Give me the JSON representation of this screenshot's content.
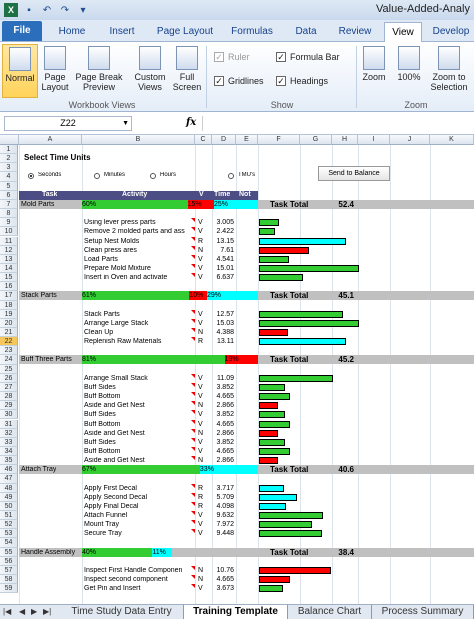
{
  "window": {
    "title": "Value-Added-Analy"
  },
  "quick_access": {
    "save_icon": "save-icon",
    "undo_icon": "undo-icon",
    "redo_icon": "redo-icon"
  },
  "tabs": [
    "File",
    "Home",
    "Insert",
    "Page Layout",
    "Formulas",
    "Data",
    "Review",
    "View",
    "Develop"
  ],
  "ribbon": {
    "workbook_views": {
      "label": "Workbook Views",
      "buttons": [
        "Normal",
        "Page Layout",
        "Page Break Preview",
        "Custom Views",
        "Full Screen"
      ]
    },
    "show": {
      "label": "Show",
      "ruler": "Ruler",
      "gridlines": "Gridlines",
      "formula_bar": "Formula Bar",
      "headings": "Headings",
      "check_mark": "✓"
    },
    "zoom": {
      "label": "Zoom",
      "buttons": [
        "Zoom",
        "100%",
        "Zoom to Selection"
      ]
    }
  },
  "formula_bar": {
    "name_box": "Z22",
    "fx": "fx",
    "dropdown": "▼"
  },
  "columns": [
    "A",
    "B",
    "C",
    "D",
    "E",
    "F",
    "G",
    "H",
    "I",
    "J",
    "K"
  ],
  "sheet": {
    "select_title": "Select Time Units",
    "units": [
      "Seconds",
      "Minutes",
      "Hours",
      "TMU's"
    ],
    "send_button": "Send to Balance",
    "headers": {
      "task": "Task",
      "activity": "Activity",
      "v": "V",
      "time": "Time",
      "not": "Not"
    },
    "task_total_label": "Task Total",
    "sections": [
      {
        "row": 7,
        "name": "Mold Parts",
        "total": "52.4",
        "green_pct": "60%",
        "red_pct": "15%",
        "cyan_pct": "25%",
        "items": [
          {
            "row": 9,
            "activity": "Using lever press parts",
            "code": "V",
            "time": "3.005",
            "color": "green",
            "len": 0.2
          },
          {
            "row": 10,
            "activity": "Remove 2 molded parts and ass",
            "code": "V",
            "time": "2.422",
            "color": "green",
            "len": 0.16
          },
          {
            "row": 11,
            "activity": "Setup Nest Molds",
            "code": "R",
            "time": "13.15",
            "color": "cyan",
            "len": 0.87
          },
          {
            "row": 12,
            "activity": "Clean press ares",
            "code": "N",
            "time": "7.61",
            "color": "red",
            "len": 0.5
          },
          {
            "row": 13,
            "activity": "Load Parts",
            "code": "V",
            "time": "4.541",
            "color": "green",
            "len": 0.3
          },
          {
            "row": 14,
            "activity": "Prepare Mold Mixture",
            "code": "V",
            "time": "15.01",
            "color": "green",
            "len": 1.0
          },
          {
            "row": 15,
            "activity": "Insert in Oven and activate",
            "code": "V",
            "time": "6.637",
            "color": "green",
            "len": 0.44
          }
        ]
      },
      {
        "row": 17,
        "name": "Stack Parts",
        "total": "45.1",
        "green_pct": "61%",
        "red_pct": "10%",
        "cyan_pct": "29%",
        "items": [
          {
            "row": 19,
            "activity": "Stack Parts",
            "code": "V",
            "time": "12.57",
            "color": "green",
            "len": 0.84
          },
          {
            "row": 20,
            "activity": "Arrange Large Stack",
            "code": "V",
            "time": "15.03",
            "color": "green",
            "len": 1.0
          },
          {
            "row": 21,
            "activity": "Clean Up",
            "code": "N",
            "time": "4.388",
            "color": "red",
            "len": 0.29
          },
          {
            "row": 22,
            "activity": "Replenish Raw Materials",
            "code": "R",
            "time": "13.11",
            "color": "cyan",
            "len": 0.87
          }
        ]
      },
      {
        "row": 24,
        "name": "Buff Three Parts",
        "total": "45.2",
        "green_pct": "81%",
        "red_pct": "19%",
        "cyan_pct": "",
        "items": [
          {
            "row": 26,
            "activity": "Arrange Small Stack",
            "code": "V",
            "time": "11.09",
            "color": "green",
            "len": 0.74
          },
          {
            "row": 27,
            "activity": "Buff Sides",
            "code": "V",
            "time": "3.852",
            "color": "green",
            "len": 0.26
          },
          {
            "row": 28,
            "activity": "Buff Bottom",
            "code": "V",
            "time": "4.665",
            "color": "green",
            "len": 0.31
          },
          {
            "row": 29,
            "activity": "Aside and Get Nest",
            "code": "N",
            "time": "2.866",
            "color": "red",
            "len": 0.19
          },
          {
            "row": 30,
            "activity": "Buff Sides",
            "code": "V",
            "time": "3.852",
            "color": "green",
            "len": 0.26
          },
          {
            "row": 31,
            "activity": "Buff Bottom",
            "code": "V",
            "time": "4.665",
            "color": "green",
            "len": 0.31
          },
          {
            "row": 32,
            "activity": "Aside and Get Nest",
            "code": "N",
            "time": "2.866",
            "color": "red",
            "len": 0.19
          },
          {
            "row": 33,
            "activity": "Buff Sides",
            "code": "V",
            "time": "3.852",
            "color": "green",
            "len": 0.26
          },
          {
            "row": 34,
            "activity": "Buff Bottom",
            "code": "V",
            "time": "4.665",
            "color": "green",
            "len": 0.31
          },
          {
            "row": 35,
            "activity": "Aside and Get Nest",
            "code": "N",
            "time": "2.866",
            "color": "red",
            "len": 0.19
          }
        ]
      },
      {
        "row": 46,
        "name": "Attach Tray",
        "total": "40.6",
        "green_pct": "67%",
        "red_pct": "",
        "cyan_pct": "33%",
        "items": [
          {
            "row": 48,
            "activity": "Apply First Decal",
            "code": "R",
            "time": "3.717",
            "color": "cyan",
            "len": 0.25
          },
          {
            "row": 49,
            "activity": "Apply Second Decal",
            "code": "R",
            "time": "5.709",
            "color": "cyan",
            "len": 0.38
          },
          {
            "row": 50,
            "activity": "Apply Final Decal",
            "code": "R",
            "time": "4.098",
            "color": "cyan",
            "len": 0.27
          },
          {
            "row": 51,
            "activity": "Attach Funnel",
            "code": "V",
            "time": "9.632",
            "color": "green",
            "len": 0.64
          },
          {
            "row": 52,
            "activity": "Mount Tray",
            "code": "V",
            "time": "7.972",
            "color": "green",
            "len": 0.53
          },
          {
            "row": 53,
            "activity": "Secure Tray",
            "code": "V",
            "time": "9.448",
            "color": "green",
            "len": 0.63
          }
        ]
      },
      {
        "row": 55,
        "name": "Handle Assembly",
        "total": "38.4",
        "green_pct": "40%",
        "red_pct": "",
        "cyan_pct": "11%",
        "items": [
          {
            "row": 57,
            "activity": "Inspect First Handle Componen",
            "code": "N",
            "time": "10.76",
            "color": "red",
            "len": 0.72
          },
          {
            "row": 58,
            "activity": "Inspect second component",
            "code": "N",
            "time": "4.665",
            "color": "red",
            "len": 0.31
          },
          {
            "row": 59,
            "activity": "Get Pin and Insert",
            "code": "V",
            "time": "3.673",
            "color": "green",
            "len": 0.24
          }
        ]
      }
    ]
  },
  "sheet_tabs": [
    "Time Study Data Entry",
    "Training Template",
    "Balance Chart",
    "Process Summary"
  ],
  "active_sheet": "Training Template",
  "colors": {
    "green": "#33cc33",
    "red": "#ff0000",
    "cyan": "#00ffff",
    "header": "#4d4d85",
    "section": "#c0c0c0",
    "file_tab": "#2a6ebc"
  }
}
